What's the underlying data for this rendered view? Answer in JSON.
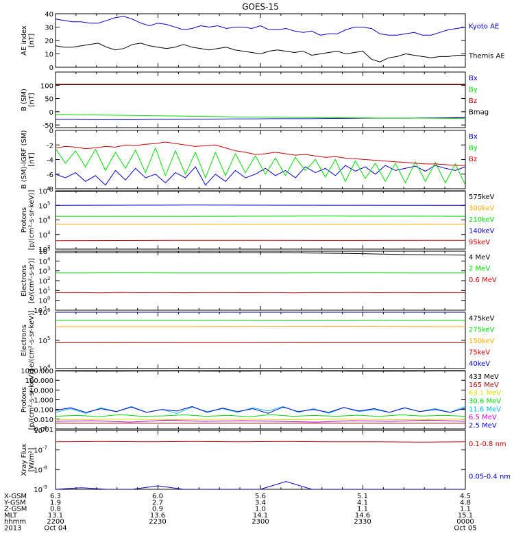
{
  "title": "GOES-15",
  "colors": {
    "black": "#000000",
    "blue": "#0000cc",
    "green": "#00dd00",
    "red": "#cc0000",
    "darkred": "#aa0000",
    "orange": "#ffaa00",
    "cyan": "#00bbee",
    "magenta": "#cc00cc",
    "yellow": "#dddd00",
    "blue2": "#0000ff"
  },
  "chart_data": [
    {
      "type": "line",
      "id": "ae",
      "ylabel": [
        "AE index",
        "[nT]"
      ],
      "yscale": "linear",
      "ylim": [
        0,
        40
      ],
      "yticks": [
        0,
        10,
        20,
        30,
        40
      ],
      "yticklabels": [
        "0",
        "10",
        "20",
        "30",
        "40"
      ],
      "series": [
        {
          "name": "Kyoto AE",
          "color": "blue",
          "values": [
            36,
            35,
            34,
            34,
            33,
            33,
            35,
            37,
            38,
            36,
            33,
            31,
            33,
            32,
            30,
            28,
            29,
            31,
            30,
            31,
            29,
            30,
            30,
            29,
            31,
            28,
            28,
            29,
            27,
            26,
            27,
            24,
            25,
            25,
            28,
            30,
            30,
            29,
            25,
            24,
            24,
            25,
            26,
            24,
            24,
            26,
            28,
            29,
            30
          ]
        },
        {
          "name": "Themis AE",
          "color": "black",
          "values": [
            16,
            15,
            15,
            16,
            17,
            18,
            15,
            13,
            14,
            17,
            18,
            16,
            15,
            14,
            15,
            17,
            15,
            14,
            13,
            14,
            15,
            13,
            12,
            11,
            10,
            12,
            13,
            12,
            11,
            12,
            9,
            10,
            11,
            12,
            10,
            11,
            12,
            6,
            4,
            7,
            8,
            10,
            9,
            8,
            7,
            8,
            8,
            9,
            9
          ]
        }
      ]
    },
    {
      "type": "line",
      "id": "bsm",
      "ylabel": [
        "B (SM)",
        "[nT]"
      ],
      "yscale": "linear",
      "ylim": [
        -60,
        150
      ],
      "yticks": [
        -50,
        0,
        50,
        100
      ],
      "yticklabels": [
        "-50",
        "0",
        "50",
        "100"
      ],
      "series": [
        {
          "name": "Bx",
          "color": "blue",
          "values": [
            -29,
            -29,
            -30,
            -30,
            -30,
            -29,
            -29,
            -28,
            -28,
            -27,
            -27,
            -26,
            -26,
            -26,
            -25,
            -25,
            -24,
            -24,
            -24,
            -23,
            -23,
            -22
          ]
        },
        {
          "name": "By",
          "color": "green",
          "values": [
            -10,
            -11,
            -12,
            -13,
            -14,
            -15,
            -16,
            -17,
            -18,
            -19,
            -20,
            -20,
            -21,
            -22,
            -22,
            -23,
            -23,
            -24,
            -24,
            -24,
            -25,
            -25
          ]
        },
        {
          "name": "Bz",
          "color": "red",
          "values": [
            102,
            102,
            102,
            102,
            102,
            102,
            102,
            102,
            102,
            102,
            102,
            102,
            102,
            102,
            102,
            102,
            102,
            102,
            102,
            102,
            102,
            102
          ]
        },
        {
          "name": "Bmag",
          "color": "black",
          "values": [
            104,
            104,
            104,
            104,
            104,
            104,
            104,
            104,
            104,
            104,
            104,
            104,
            104,
            104,
            104,
            104,
            104,
            104,
            104,
            104,
            104,
            104
          ]
        }
      ]
    },
    {
      "type": "line",
      "id": "bigrf",
      "ylabel": [
        "B (SM)-IGRF (SM)",
        "[nT]"
      ],
      "yscale": "linear",
      "ylim": [
        -8,
        0
      ],
      "yticks": [
        -8,
        -6,
        -4,
        -2,
        0
      ],
      "yticklabels": [
        "-8",
        "-6",
        "-4",
        "-2",
        "0"
      ],
      "series": [
        {
          "name": "Bx",
          "color": "blue",
          "values": [
            -6,
            -6.5,
            -5.8,
            -7,
            -6.2,
            -7.5,
            -5.5,
            -6.8,
            -5.2,
            -6.5,
            -6,
            -7.2,
            -5.8,
            -6.5,
            -5,
            -7.5,
            -6,
            -7,
            -5.5,
            -6.5,
            -6,
            -5.2,
            -6.2,
            -5.5,
            -6.5,
            -5,
            -5.8,
            -5.2,
            -6.2,
            -4.8,
            -5.6,
            -5,
            -6,
            -4.8,
            -5.5,
            -5.2,
            -4.9,
            -5.6,
            -4.8,
            -5.2,
            -5.5,
            -5
          ]
        },
        {
          "name": "By",
          "color": "green",
          "values": [
            -2.5,
            -4.5,
            -2.8,
            -5,
            -2.6,
            -5.5,
            -3,
            -5.2,
            -2.7,
            -5.8,
            -2.4,
            -6.2,
            -2.8,
            -6,
            -3,
            -6.5,
            -3,
            -6.2,
            -3.2,
            -5.8,
            -3.5,
            -6,
            -3.8,
            -6.2,
            -3.7,
            -5.5,
            -4,
            -6.4,
            -4,
            -7,
            -4.2,
            -6.6,
            -4.5,
            -7,
            -4.5,
            -7.2,
            -4.3,
            -7,
            -4.4,
            -7.2,
            -4.6,
            -7.5
          ]
        },
        {
          "name": "Bz",
          "color": "red",
          "values": [
            -2.4,
            -2.2,
            -2.3,
            -2.5,
            -2.4,
            -2.2,
            -2.3,
            -2.0,
            -2.1,
            -1.9,
            -1.8,
            -1.6,
            -1.8,
            -2.0,
            -2.2,
            -2.1,
            -2.0,
            -2.4,
            -2.8,
            -3.0,
            -3.3,
            -3.2,
            -3.0,
            -3.2,
            -3.4,
            -3.3,
            -3.5,
            -3.7,
            -3.6,
            -3.8,
            -3.9,
            -4.0,
            -4.1,
            -4.2,
            -4.3,
            -4.4,
            -4.5,
            -4.6,
            -4.6,
            -4.7,
            -4.8,
            -4.8
          ]
        }
      ]
    },
    {
      "type": "line",
      "id": "protons1",
      "ylabel": [
        "Protons",
        "[p/(cm²-s-sr-keV)]"
      ],
      "yscale": "log",
      "ylim": [
        100,
        1000000
      ],
      "yticks": [
        100,
        1000,
        10000,
        100000,
        1000000
      ],
      "yticklabels": [
        "10^2",
        "10^3",
        "10^4",
        "10^5",
        "10^6"
      ],
      "series": [
        {
          "name": "575keV",
          "color": "black",
          "values": [
            900000,
            950000,
            920000,
            950000
          ]
        },
        {
          "name": "300keV",
          "color": "orange",
          "values": [
            5000,
            5000,
            5100,
            5000
          ]
        },
        {
          "name": "210keV",
          "color": "green",
          "values": [
            18000,
            18000,
            18500,
            18000
          ]
        },
        {
          "name": "140keV",
          "color": "blue",
          "values": [
            100000,
            105000,
            102000,
            100000
          ]
        },
        {
          "name": "95keV",
          "color": "red",
          "values": [
            380,
            400,
            390,
            400
          ]
        }
      ]
    },
    {
      "type": "line",
      "id": "electrons1",
      "ylabel": [
        "Electrons",
        "[e/(cm²-s-sr)]"
      ],
      "yscale": "log",
      "ylim": [
        0.1,
        100000
      ],
      "yticks": [
        0.1,
        1,
        10,
        100,
        1000,
        10000,
        100000
      ],
      "yticklabels": [
        "10^-1",
        "10^0",
        "10^1",
        "10^2",
        "10^3",
        "10^4",
        "10^5"
      ],
      "series": [
        {
          "name": "4 MeV",
          "color": "black",
          "values": [
            70000,
            70000,
            70000,
            70000,
            68000,
            60000,
            45000,
            40000
          ]
        },
        {
          "name": "2 MeV",
          "color": "green",
          "values": [
            600,
            620,
            600,
            610,
            600,
            620,
            600,
            600
          ]
        },
        {
          "name": "0.6 MeV",
          "color": "red",
          "values": [
            6,
            6.3,
            5.8,
            6.4,
            6,
            6.2,
            5.9,
            6.3,
            6.1,
            6,
            6.2,
            5.8,
            6.3,
            6.1,
            6.4,
            6,
            6.2,
            5.9,
            6.3,
            6
          ]
        }
      ]
    },
    {
      "type": "line",
      "id": "electrons2",
      "ylabel": [
        "Electrons",
        "[e/(cm²-s-sr-keV)]"
      ],
      "yscale": "log",
      "ylim": [
        10000,
        1000000
      ],
      "yticks": [
        10000,
        100000,
        1000000
      ],
      "yticklabels": [
        "10^4",
        "10^5",
        "10^6"
      ],
      "series": [
        {
          "name": "475keV",
          "color": "black",
          "values": [
            1000000,
            1000000,
            1000000,
            1000000
          ]
        },
        {
          "name": "275keV",
          "color": "green",
          "values": [
            520000,
            520000,
            525000,
            520000
          ]
        },
        {
          "name": "150keV",
          "color": "orange",
          "values": [
            310000,
            310000,
            315000,
            310000
          ]
        },
        {
          "name": "75keV",
          "color": "red",
          "values": [
            82000,
            83000,
            82000,
            82000
          ]
        },
        {
          "name": "40keV",
          "color": "blue",
          "values": [
            1000000,
            1000000,
            1000000,
            1000000
          ]
        }
      ]
    },
    {
      "type": "line",
      "id": "protons2",
      "ylabel": [
        "Protons",
        "[p/(cm²-s-sr-keV)]"
      ],
      "yscale": "log",
      "ylim": [
        0.001,
        1000
      ],
      "yticks": [
        0.001,
        0.01,
        0.1,
        1,
        10,
        100,
        1000
      ],
      "yticklabels": [
        "0.001",
        "0.010",
        "0.100",
        "1.000",
        "10.000",
        "100.000",
        "1000.000"
      ],
      "series": [
        {
          "name": "433 MeV",
          "color": "black",
          "values": [
            900,
            860,
            880,
            900,
            870,
            890,
            900,
            880,
            870,
            890,
            900
          ]
        },
        {
          "name": "165 MeV",
          "color": "darkred",
          "values": [
            0.004,
            0.004,
            0.004,
            0.004,
            0.004,
            0.004,
            0.004,
            0.004
          ]
        },
        {
          "name": "63.1 MeV",
          "color": "yellow",
          "values": [
            0.009,
            0.01,
            0.009,
            0.01,
            0.009,
            0.01,
            0.009,
            0.01
          ]
        },
        {
          "name": "30.6 MeV",
          "color": "green",
          "values": [
            0.02,
            0.025,
            0.018,
            0.03,
            0.02,
            0.022,
            0.028,
            0.02,
            0.025,
            0.018,
            0.03,
            0.02,
            0.024,
            0.02,
            0.026,
            0.019,
            0.028,
            0.021,
            0.025,
            0.02
          ]
        },
        {
          "name": "11.6 MeV",
          "color": "cyan",
          "values": [
            0.05,
            0.12,
            0.04,
            0.15,
            0.06,
            0.2,
            0.05,
            0.1,
            0.04,
            0.18,
            0.06,
            0.12,
            0.05,
            0.15,
            0.07,
            0.2,
            0.05,
            0.12,
            0.04,
            0.16,
            0.06,
            0.1,
            0.05,
            0.14,
            0.06,
            0.12,
            0.05,
            0.2
          ]
        },
        {
          "name": "6.5 MeV",
          "color": "magenta",
          "values": [
            0.006,
            0.007,
            0.005,
            0.008,
            0.006,
            0.007,
            0.006,
            0.005,
            0.007,
            0.006,
            0.008,
            0.006
          ]
        },
        {
          "name": "2.5 MeV",
          "color": "blue",
          "values": [
            0.08,
            0.15,
            0.05,
            0.12,
            0.06,
            0.18,
            0.05,
            0.1,
            0.07,
            0.2,
            0.05,
            0.14,
            0.06,
            0.12,
            0.04,
            0.18,
            0.06,
            0.1,
            0.05,
            0.16,
            0.07,
            0.12,
            0.05,
            0.15,
            0.06,
            0.1,
            0.05,
            0.14
          ]
        }
      ]
    },
    {
      "type": "line",
      "id": "xray",
      "ylabel": [
        "Xray Flux",
        "[W/m²]"
      ],
      "yscale": "log",
      "ylim": [
        1e-09,
        1e-06
      ],
      "yticks": [
        1e-09,
        1e-08,
        1e-07,
        1e-06
      ],
      "yticklabels": [
        "10^-9",
        "10^-8",
        "10^-7",
        "10^-6"
      ],
      "series": [
        {
          "name": "0.1-0.8 nm",
          "color": "red",
          "values": [
            2.6e-07,
            2.7e-07,
            2.6e-07,
            2.7e-07,
            2.6e-07,
            2.7e-07,
            2.6e-07,
            2.6e-07,
            2.5e-07,
            2.6e-07
          ]
        },
        {
          "name": "0.05-0.4 nm",
          "color": "blue",
          "values": [
            1e-09,
            1.2e-09,
            1e-09,
            1e-09,
            1.5e-09,
            1e-09,
            1e-09,
            1e-09,
            1e-09,
            2.5e-09,
            1e-09,
            1e-09,
            1e-09,
            1e-09,
            1e-09,
            1e-09,
            1e-09
          ]
        }
      ]
    }
  ],
  "footer": {
    "rows": [
      {
        "label": "X-GSM",
        "values": [
          "6.3",
          "6.0",
          "5.6",
          "5.1",
          "4.5"
        ]
      },
      {
        "label": "Y-GSM",
        "values": [
          "1.9",
          "2.7",
          "3.4",
          "4.1",
          "4.8"
        ]
      },
      {
        "label": "Z-GSM",
        "values": [
          "0.8",
          "0.9",
          "1.0",
          "1.1",
          "1.1"
        ]
      },
      {
        "label": "MLT",
        "values": [
          "13.1",
          "13.6",
          "14.1",
          "14.6",
          "15.1"
        ]
      },
      {
        "label": "hhmm",
        "values": [
          "2200",
          "2230",
          "2300",
          "2330",
          "0000"
        ]
      },
      {
        "label": "2013",
        "values": [
          "Oct 04",
          "",
          "",
          "",
          "Oct 05"
        ]
      }
    ]
  }
}
